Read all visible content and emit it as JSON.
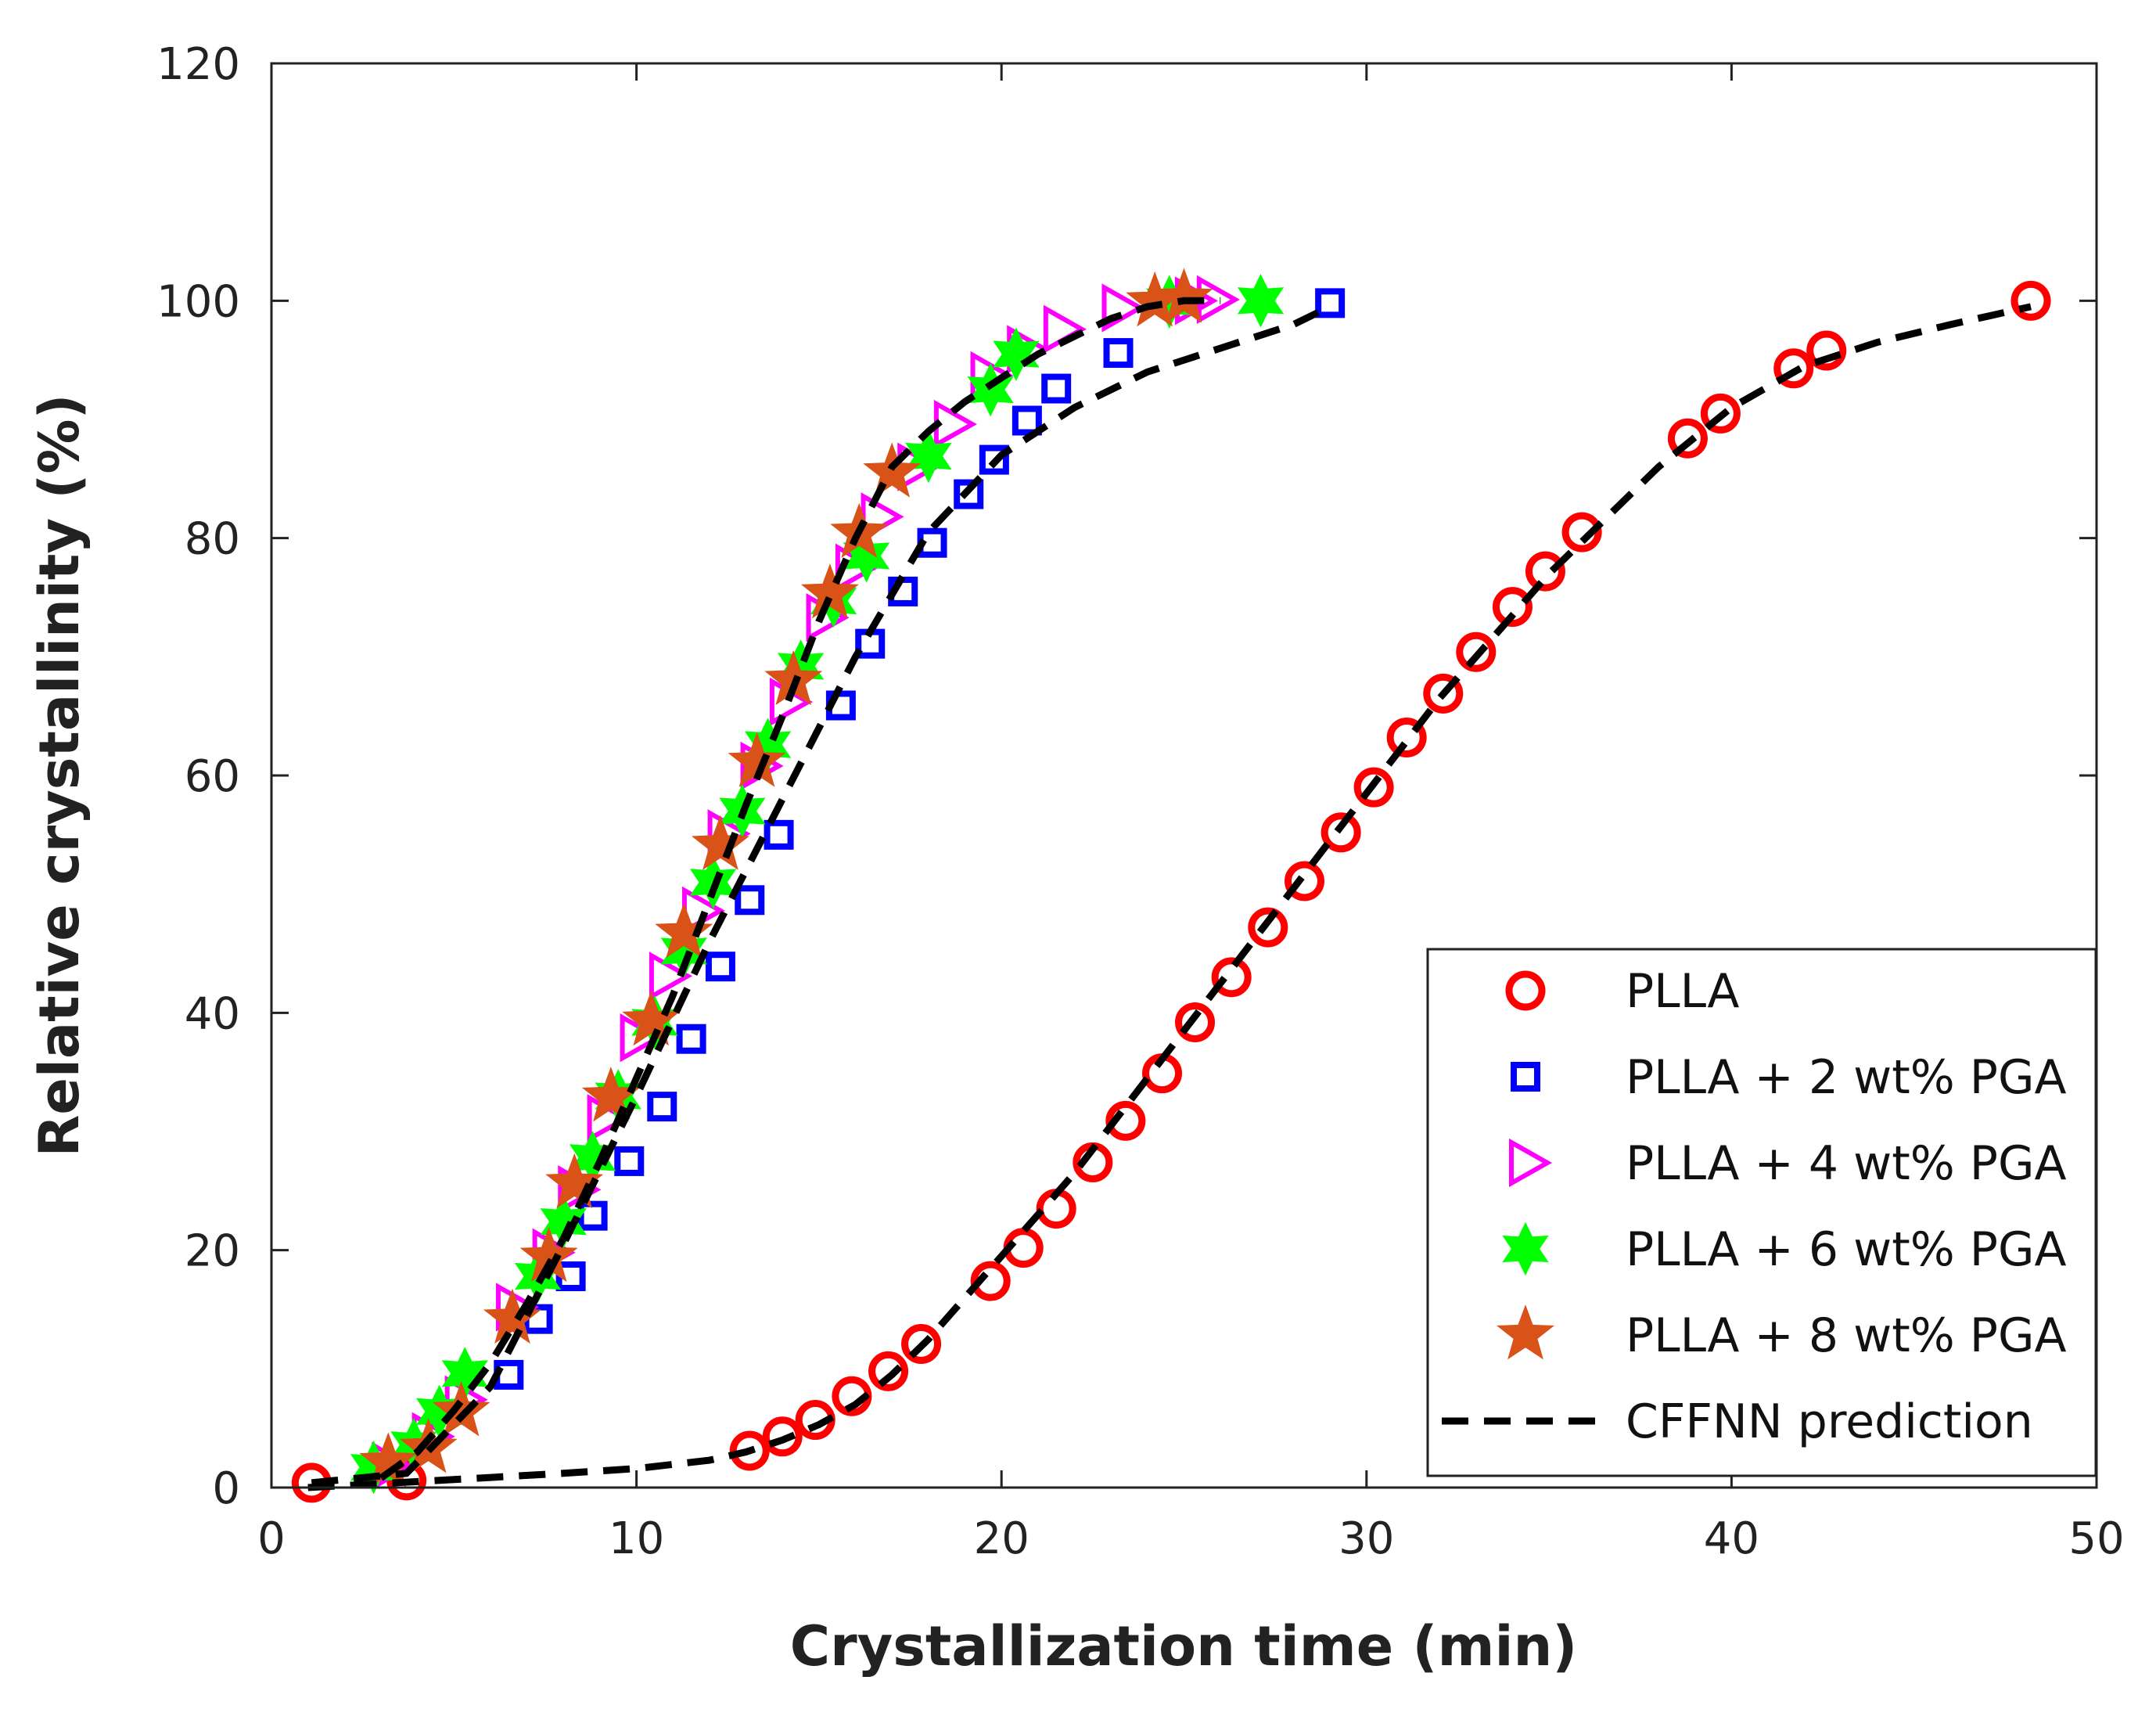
{
  "chart_data": {
    "type": "scatter",
    "title": "",
    "xlabel": "Crystallization time (min)",
    "ylabel": "Relative crystallinity (%)",
    "xlim": [
      0,
      50
    ],
    "ylim": [
      0,
      120
    ],
    "xticks": [
      0,
      10,
      20,
      30,
      40,
      50
    ],
    "yticks": [
      0,
      20,
      40,
      60,
      80,
      100,
      120
    ],
    "grid": false,
    "legend_position": "bottom-right",
    "series": [
      {
        "name": "PLLA",
        "marker": "circle",
        "color": "#ff0000",
        "x": [
          1.1,
          3.7,
          13.1,
          14.0,
          14.9,
          15.9,
          16.9,
          17.8,
          19.7,
          20.6,
          21.5,
          22.5,
          23.4,
          24.4,
          25.3,
          26.3,
          27.3,
          28.3,
          29.3,
          30.2,
          31.1,
          32.1,
          33.0,
          34.0,
          34.9,
          35.9,
          38.8,
          39.7,
          41.7,
          42.6,
          48.2
        ],
        "y": [
          0.4,
          0.6,
          3.1,
          4.3,
          5.7,
          7.7,
          9.8,
          12.1,
          17.4,
          20.2,
          23.5,
          27.4,
          30.9,
          34.9,
          39.2,
          43.0,
          47.2,
          51.1,
          55.2,
          59.0,
          63.2,
          66.9,
          70.4,
          74.2,
          77.2,
          80.5,
          88.4,
          90.5,
          94.3,
          95.8,
          100.0
        ]
      },
      {
        "name": "PLLA + 2 wt% PGA",
        "marker": "square",
        "color": "#0000ff",
        "x": [
          6.5,
          7.3,
          8.2,
          8.8,
          9.8,
          10.7,
          11.5,
          12.3,
          13.1,
          13.9,
          15.6,
          16.4,
          17.3,
          18.1,
          19.1,
          19.8,
          20.7,
          21.5,
          23.2,
          29.0
        ],
        "y": [
          9.5,
          14.2,
          17.8,
          22.9,
          27.5,
          32.1,
          37.8,
          43.9,
          49.5,
          55.0,
          65.9,
          71.1,
          75.5,
          79.6,
          83.7,
          86.6,
          89.9,
          92.6,
          95.6,
          99.8
        ]
      },
      {
        "name": "PLLA + 4 wt% PGA",
        "marker": "triangle-right",
        "color": "#ff00ff",
        "x": [
          3.2,
          4.3,
          5.2,
          6.6,
          7.6,
          8.3,
          9.1,
          10.0,
          10.8,
          11.7,
          12.4,
          13.3,
          14.1,
          15.1,
          15.9,
          16.6,
          17.6,
          18.6,
          19.6,
          20.6,
          21.6,
          23.2,
          25.2,
          25.8
        ],
        "y": [
          1.8,
          4.3,
          7.4,
          15.2,
          19.8,
          25.1,
          31.1,
          37.9,
          43.1,
          48.6,
          55.1,
          60.8,
          66.2,
          73.3,
          77.5,
          81.8,
          86.0,
          89.6,
          93.7,
          95.9,
          97.6,
          99.4,
          100.0,
          100.1
        ]
      },
      {
        "name": "PLLA + 6 wt% PGA",
        "marker": "star6",
        "color": "#00ff00",
        "x": [
          2.8,
          3.9,
          4.6,
          5.3,
          7.3,
          8.0,
          8.8,
          9.5,
          10.5,
          11.3,
          12.1,
          12.9,
          13.6,
          14.5,
          15.4,
          16.3,
          18.0,
          19.7,
          20.4,
          24.6,
          27.1
        ],
        "y": [
          1.7,
          3.6,
          6.4,
          9.6,
          17.8,
          22.4,
          27.8,
          33.0,
          39.2,
          45.2,
          51.0,
          57.0,
          62.6,
          69.2,
          74.7,
          78.5,
          86.9,
          92.5,
          95.5,
          99.9,
          100.0
        ]
      },
      {
        "name": "PLLA + 8 wt% PGA",
        "marker": "star5",
        "color": "#d95319",
        "x": [
          3.2,
          4.3,
          5.2,
          6.6,
          7.6,
          8.3,
          9.3,
          10.4,
          11.3,
          12.3,
          13.3,
          14.3,
          15.3,
          16.1,
          17.0,
          24.2,
          25.0
        ],
        "y": [
          2.1,
          3.3,
          6.4,
          14.2,
          19.4,
          25.6,
          32.9,
          39.3,
          46.7,
          54.1,
          61.1,
          68.0,
          75.3,
          80.4,
          85.5,
          99.9,
          100.2
        ]
      },
      {
        "name": "CFFNN prediction",
        "marker": "dashed-line",
        "color": "#000000",
        "curves": [
          {
            "x": [
              1.1,
              3.7,
              6.0,
              8.0,
              10.0,
              12.0,
              14.0,
              16.0,
              18.0,
              20.0,
              22.0,
              24.0,
              26.0,
              28.0,
              29.0
            ],
            "y": [
              0.4,
              1.2,
              8.5,
              20.5,
              33.0,
              46.0,
              58.0,
              70.0,
              80.5,
              87.0,
              91.0,
              94.0,
              96.0,
              98.0,
              99.5
            ]
          },
          {
            "x": [
              3.0,
              4.0,
              5.0,
              6.0,
              7.0,
              8.0,
              9.0,
              10.0,
              11.0,
              12.0,
              13.0,
              14.0,
              15.0,
              16.0,
              17.0,
              18.0,
              19.0,
              20.0,
              21.0,
              22.0,
              23.0,
              24.0,
              25.0,
              26.0
            ],
            "y": [
              0.8,
              3.0,
              6.5,
              10.5,
              15.5,
              21.0,
              27.5,
              34.5,
              41.5,
              49.5,
              57.5,
              65.0,
              73.0,
              80.0,
              86.0,
              89.0,
              91.5,
              93.5,
              95.5,
              97.0,
              98.5,
              99.5,
              100.0,
              100.0
            ]
          },
          {
            "x": [
              1.0,
              4.0,
              8.0,
              10.0,
              12.0,
              13.0,
              14.0,
              15.0,
              16.0,
              17.0,
              18.0,
              19.0,
              20.0,
              21.0,
              22.0,
              23.0,
              24.0,
              25.0,
              26.0,
              27.0,
              28.0,
              29.0,
              30.0,
              31.0,
              32.0,
              33.0,
              34.0,
              35.0,
              36.0,
              38.0,
              40.0,
              42.0,
              44.0,
              46.0,
              48.2
            ],
            "y": [
              0.0,
              0.5,
              1.2,
              1.6,
              2.3,
              3.0,
              4.0,
              5.3,
              7.0,
              9.5,
              12.5,
              16.0,
              19.5,
              23.0,
              26.5,
              30.5,
              34.5,
              38.5,
              42.5,
              46.5,
              50.5,
              54.5,
              58.5,
              62.5,
              66.5,
              70.0,
              73.5,
              77.0,
              80.0,
              86.0,
              91.0,
              94.5,
              96.5,
              98.0,
              99.5
            ]
          }
        ]
      }
    ]
  }
}
